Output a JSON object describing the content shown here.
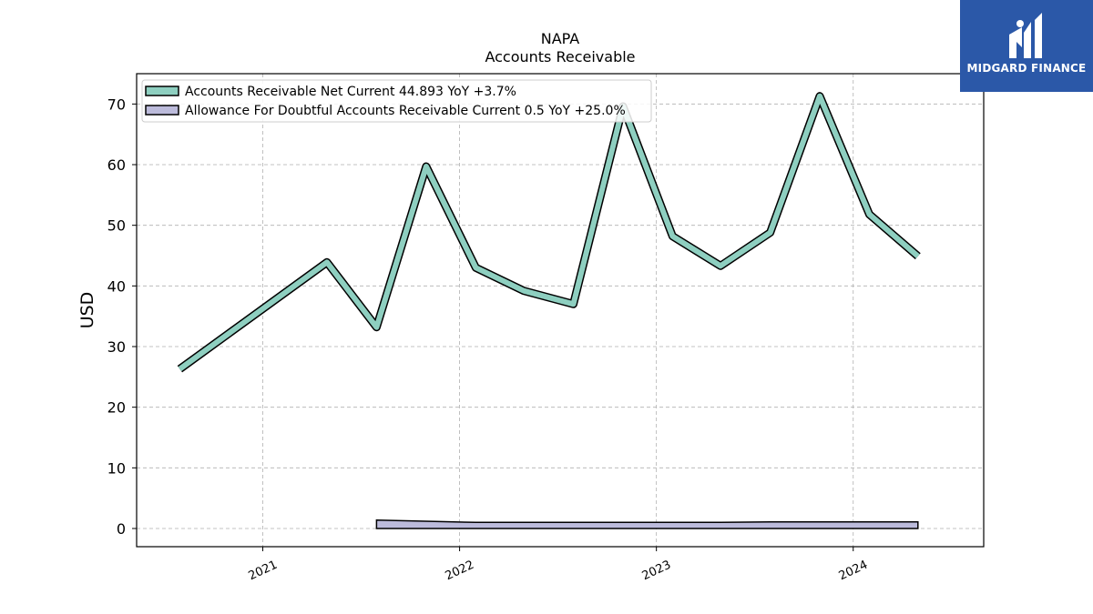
{
  "brand": {
    "name": "MIDGARD FINANCE",
    "bg_color": "#2b58a8"
  },
  "chart_data": {
    "type": "area",
    "title": "NAPA",
    "subtitle": "Accounts Receivable",
    "ylabel": "USD",
    "xlabel": "",
    "ylim": [
      -3,
      75
    ],
    "xlim": [
      "2020-05-12",
      "2024-08-30"
    ],
    "yticks": [
      0,
      10,
      20,
      30,
      40,
      50,
      60,
      70
    ],
    "xticks": [
      "2021-01-01",
      "2022-01-01",
      "2023-01-01",
      "2024-01-01"
    ],
    "xtick_labels": [
      "2021",
      "2022",
      "2023",
      "2024"
    ],
    "grid": true,
    "legend_position": "top-left",
    "series": [
      {
        "name": "Accounts Receivable Net Current",
        "legend_label": "Accounts Receivable Net Current  44.893 YoY +3.7%",
        "color": "#8ecfc0",
        "x": [
          "2020-07-31",
          "2021-04-30",
          "2021-07-31",
          "2021-10-31",
          "2022-01-31",
          "2022-04-30",
          "2022-07-31",
          "2022-10-31",
          "2023-01-31",
          "2023-04-30",
          "2023-07-31",
          "2023-10-31",
          "2024-01-31",
          "2024-04-30"
        ],
        "y": [
          26.3,
          43.9,
          33.2,
          59.7,
          43.0,
          39.2,
          37.0,
          69.6,
          48.2,
          43.3,
          48.8,
          71.3,
          51.8,
          44.893
        ]
      },
      {
        "name": "Allowance For Doubtful Accounts Receivable Current",
        "legend_label": "Allowance For Doubtful Accounts Receivable Current  0.5 YoY +25.0%",
        "color": "#bcbbdb",
        "x": [
          "2021-07-31",
          "2022-01-31",
          "2022-04-30",
          "2022-07-31",
          "2022-10-31",
          "2023-01-31",
          "2023-04-30",
          "2023-07-31",
          "2023-10-31",
          "2024-01-31",
          "2024-04-30"
        ],
        "y": [
          0.8,
          0.4,
          0.4,
          0.4,
          0.4,
          0.4,
          0.4,
          0.5,
          0.5,
          0.5,
          0.5
        ]
      }
    ]
  }
}
